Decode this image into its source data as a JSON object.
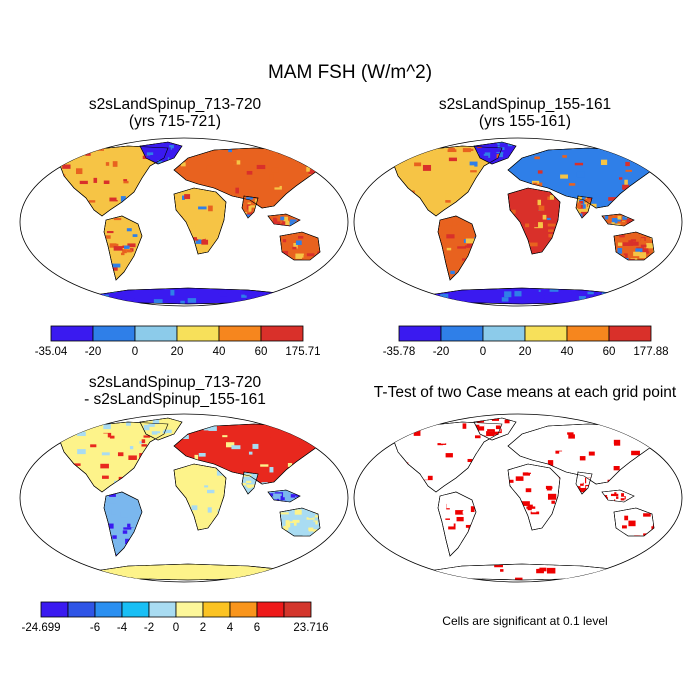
{
  "main_title": "MAM FSH (W/m^2)",
  "panels": {
    "top_left": {
      "title_line1": "s2sLandSpinup_713-720",
      "title_line2": "(yrs 715-721)"
    },
    "top_right": {
      "title_line1": "s2sLandSpinup_155-161",
      "title_line2": "(yrs 155-161)"
    },
    "bottom_left": {
      "title_line1": "s2sLandSpinup_713-720",
      "title_line2": "- s2sLandSpinup_155-161"
    },
    "bottom_right": {
      "title_line1": "T-Test of two Case means at each grid point",
      "title_line2": ""
    }
  },
  "colorbars": {
    "top_left": {
      "colors": [
        "#3a1af0",
        "#2f7fe8",
        "#8ccbea",
        "#f7e05a",
        "#f6861e",
        "#d9302a"
      ],
      "labels": [
        "-35.04",
        "-20",
        "0",
        "20",
        "40",
        "60",
        "175.71"
      ]
    },
    "top_right": {
      "colors": [
        "#3a1af0",
        "#2f7fe8",
        "#8ccbea",
        "#f7e05a",
        "#f6861e",
        "#d9302a"
      ],
      "labels": [
        "-35.78",
        "-20",
        "0",
        "20",
        "40",
        "60",
        "177.88"
      ]
    },
    "bottom_left": {
      "colors": [
        "#3a1af0",
        "#2f55e6",
        "#2b8ff0",
        "#19bff5",
        "#a9dcf2",
        "#fdf79a",
        "#fbc323",
        "#f9951c",
        "#ee1a1a",
        "#d3362c"
      ],
      "labels": [
        "-24.699",
        "",
        "-6",
        "-4",
        "-2",
        "0",
        "2",
        "4",
        "6",
        "",
        "23.716"
      ]
    }
  },
  "note": "Cells are significant at 0.1 level",
  "map_colors": {
    "land_warm": "#e8621f",
    "land_hot": "#d9302a",
    "land_mild": "#f6c445",
    "cold": "#2f7fe8",
    "polar": "#3a1af0",
    "diff_base": "#fdf38a",
    "diff_pos": "#e8281e",
    "diff_neg": "#3a1af0",
    "ttest_sig": "#ee0000"
  }
}
